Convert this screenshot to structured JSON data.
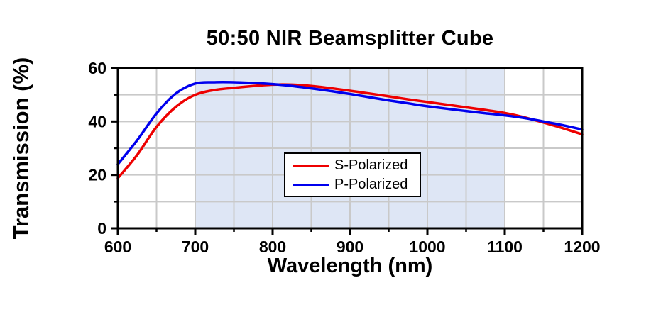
{
  "figure": {
    "title": "50:50 NIR Beamsplitter Cube",
    "x_axis_label": "Wavelength (nm)",
    "y_axis_label": "Transmission (%)"
  },
  "chart_data": {
    "type": "line",
    "title": "50:50 NIR Beamsplitter Cube",
    "xlabel": "Wavelength (nm)",
    "ylabel": "Transmission (%)",
    "xlim": [
      600,
      1200
    ],
    "ylim": [
      0,
      60
    ],
    "x_major_ticks": [
      600,
      700,
      800,
      900,
      1000,
      1100,
      1200
    ],
    "x_minor_ticks": [
      650,
      750,
      850,
      950,
      1050,
      1150
    ],
    "y_major_ticks": [
      0,
      20,
      40,
      60
    ],
    "y_minor_ticks": [
      10,
      30,
      50
    ],
    "grid": true,
    "grid_x_step": 50,
    "grid_y_step": 10,
    "grid_color": "#c9c9c9",
    "shaded_region": {
      "x_start": 700,
      "x_end": 1100,
      "color": "#dee6f5"
    },
    "legend_position": "center",
    "x": [
      600,
      625,
      650,
      675,
      700,
      725,
      750,
      775,
      800,
      825,
      850,
      875,
      900,
      925,
      950,
      975,
      1000,
      1025,
      1050,
      1075,
      1100,
      1125,
      1150,
      1175,
      1200
    ],
    "series": [
      {
        "name": "S-Polarized",
        "color": "#ee0000",
        "values": [
          18.8,
          27.5,
          38.0,
          45.5,
          50.0,
          51.8,
          52.6,
          53.3,
          53.8,
          53.8,
          53.3,
          52.5,
          51.5,
          50.5,
          49.4,
          48.3,
          47.3,
          46.3,
          45.3,
          44.3,
          43.2,
          41.6,
          39.6,
          37.5,
          35.2
        ]
      },
      {
        "name": "P-Polarized",
        "color": "#0000ee",
        "values": [
          24.0,
          33.0,
          43.0,
          50.5,
          54.2,
          54.7,
          54.7,
          54.4,
          54.0,
          53.3,
          52.4,
          51.4,
          50.3,
          49.1,
          47.9,
          46.8,
          45.7,
          44.8,
          43.9,
          43.1,
          42.3,
          41.3,
          40.0,
          38.6,
          37.0
        ]
      }
    ]
  }
}
